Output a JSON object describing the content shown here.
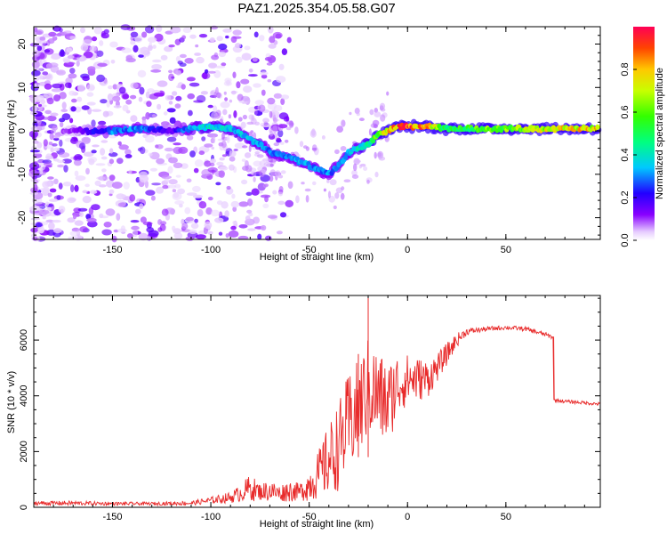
{
  "title": "PAZ1.2025.354.05.58.G07",
  "colors": {
    "snr_line": "#e82a2a",
    "axis": "#000000",
    "background": "#ffffff"
  },
  "chart_data": [
    {
      "type": "heatmap",
      "name": "spectrogram",
      "xlabel": "Height of straight line (km)",
      "ylabel": "Frequency (Hz)",
      "xlim": [
        -190,
        98
      ],
      "ylim": [
        -25,
        24
      ],
      "xticks": [
        -150,
        -100,
        -50,
        0,
        50
      ],
      "xtick_labels": [
        "-150",
        "-100",
        "-50",
        "0",
        "50"
      ],
      "yticks": [
        -20,
        -10,
        0,
        10,
        20
      ],
      "ytick_labels": [
        "-20",
        "-10",
        "0",
        "10",
        "20"
      ],
      "ridge": {
        "x": [
          -170,
          -150,
          -135,
          -120,
          -110,
          -100,
          -90,
          -80,
          -75,
          -70,
          -60,
          -55,
          -50,
          -45,
          -40,
          -35,
          -30,
          -25,
          -20,
          -15,
          -10,
          -5,
          0,
          5,
          10,
          20,
          30,
          40,
          50,
          60,
          70,
          80,
          90
        ],
        "freq": [
          0,
          0,
          0.5,
          0,
          0.5,
          1,
          0.5,
          -2,
          -3,
          -5,
          -6,
          -7,
          -8,
          -9,
          -10,
          -8,
          -5,
          -4,
          -3,
          -1,
          0,
          1,
          1,
          1,
          1,
          0.5,
          0.5,
          0.5,
          0.5,
          0.5,
          0.5,
          0.5,
          0.5
        ],
        "amplitude": [
          0.1,
          0.3,
          0.3,
          0.15,
          0.35,
          0.4,
          0.35,
          0.35,
          0.35,
          0.3,
          0.3,
          0.35,
          0.3,
          0.3,
          0.3,
          0.3,
          0.35,
          0.4,
          0.45,
          0.6,
          0.8,
          0.85,
          0.9,
          0.85,
          0.8,
          0.5,
          0.55,
          0.6,
          0.62,
          0.65,
          0.7,
          0.75,
          0.75
        ]
      }
    },
    {
      "type": "colorbar",
      "name": "amplitude-colorbar",
      "label": "Normalized spectral amplitude",
      "ticks": [
        0,
        0.2,
        0.4,
        0.6,
        0.8
      ],
      "tick_labels": [
        "0.0",
        "0.2",
        "0.4",
        "0.6",
        "0.8"
      ],
      "range": [
        0,
        1
      ]
    },
    {
      "type": "line",
      "name": "snr",
      "xlabel": "Height of straight line (km)",
      "ylabel": "SNR (10 * v/v)",
      "xlim": [
        -190,
        98
      ],
      "ylim": [
        0,
        7600
      ],
      "xticks": [
        -150,
        -100,
        -50,
        0,
        50
      ],
      "xtick_labels": [
        "-150",
        "-100",
        "-50",
        "0",
        "50"
      ],
      "yticks": [
        0,
        2000,
        4000,
        6000
      ],
      "ytick_labels": [
        "0",
        "2000",
        "4000",
        "6000"
      ],
      "series": [
        {
          "name": "SNR",
          "x": [
            -190,
            -170,
            -150,
            -130,
            -110,
            -100,
            -90,
            -85,
            -80,
            -75,
            -70,
            -65,
            -60,
            -55,
            -50,
            -45,
            -40,
            -35,
            -30,
            -25,
            -20,
            -15,
            -10,
            -5,
            0,
            5,
            10,
            15,
            20,
            25,
            30,
            40,
            50,
            60,
            70,
            74,
            74.5,
            80,
            90,
            98
          ],
          "y": [
            150,
            150,
            130,
            130,
            150,
            250,
            350,
            500,
            700,
            550,
            600,
            500,
            600,
            550,
            800,
            1200,
            1700,
            2200,
            3000,
            3500,
            4300,
            4000,
            3700,
            4400,
            4600,
            4600,
            4600,
            5000,
            5500,
            6000,
            6300,
            6400,
            6450,
            6400,
            6200,
            6100,
            3850,
            3800,
            3750,
            3700
          ],
          "noise": [
            80,
            80,
            60,
            60,
            80,
            120,
            200,
            300,
            500,
            300,
            400,
            300,
            400,
            300,
            600,
            900,
            1300,
            1600,
            1800,
            1800,
            1800,
            1700,
            1500,
            1200,
            900,
            800,
            700,
            500,
            400,
            250,
            120,
            80,
            80,
            80,
            80,
            80,
            60,
            60,
            60,
            60
          ],
          "spikes": [
            {
              "x": -20,
              "y": 7600
            },
            {
              "x": -25,
              "y": 5500
            }
          ]
        }
      ]
    }
  ]
}
